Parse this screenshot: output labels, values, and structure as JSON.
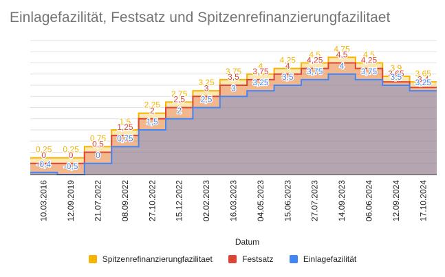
{
  "chart_data": {
    "type": "area",
    "title": "Einlagefazilität, Festsatz und Spitzenrefinanzierungfazilitaet",
    "xlabel": "Datum",
    "ylabel": "",
    "categories": [
      "10.03.2016",
      "12.09.2019",
      "21.07.2022",
      "08.09.2022",
      "27.10.2022",
      "15.12.2022",
      "02.02.2023",
      "16.03.2023",
      "04.05.2023",
      "15.06.2023",
      "27.07.2023",
      "14.09.2023",
      "06.06.2024",
      "12.09.2024",
      "17.10.2024"
    ],
    "ylim": [
      -0.5,
      5.5
    ],
    "grid": true,
    "legend_position": "bottom",
    "series": [
      {
        "name": "Spitzenrefinanzierungfazilitaet",
        "color": "#f4b400",
        "values": [
          0.25,
          0.25,
          0.75,
          1.5,
          2.25,
          2.75,
          3.25,
          3.75,
          4,
          4.25,
          4.5,
          4.75,
          4.5,
          3.9,
          3.65
        ],
        "labels": [
          "0,25",
          "0,25",
          "0,75",
          "1,5",
          "2,25",
          "2,75",
          "3,25",
          "3,75",
          "4",
          "4,25",
          "4,5",
          "4,75",
          "4,5",
          "3,9",
          "3,65"
        ]
      },
      {
        "name": "Festsatz",
        "color": "#db4437",
        "values": [
          0,
          0,
          0.5,
          1.25,
          2,
          2.5,
          3,
          3.5,
          3.75,
          4,
          4.25,
          4.5,
          4.25,
          3.65,
          3.4
        ],
        "labels": [
          "0",
          "0",
          "0,5",
          "1,25",
          "2",
          "2,5",
          "3",
          "3,5",
          "3,75",
          "4",
          "4,25",
          "4,5",
          "4,25",
          "3,65",
          "3,4"
        ]
      },
      {
        "name": "Einlagefazilität",
        "color": "#4285f4",
        "values": [
          -0.4,
          -0.5,
          0,
          0.75,
          1.5,
          2,
          2.5,
          3,
          3.25,
          3.5,
          3.75,
          4,
          3.75,
          3.5,
          3.25
        ],
        "labels": [
          "-0,4",
          "-0,5",
          "0",
          "0,75",
          "1,5",
          "2",
          "2,5",
          "3",
          "3,25",
          "3,5",
          "3,75",
          "4",
          "3,75",
          "3,5",
          "3,25"
        ]
      }
    ]
  }
}
